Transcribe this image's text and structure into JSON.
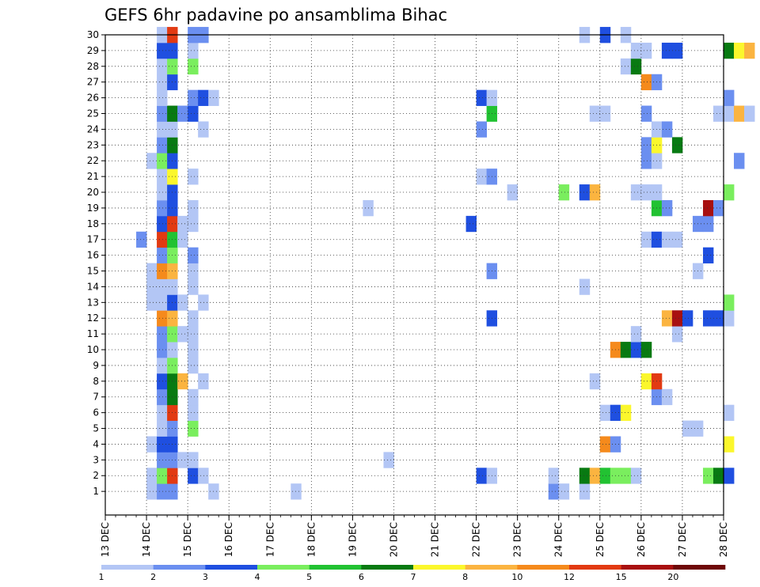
{
  "chart_data": {
    "type": "heatmap",
    "title": "GEFS 6hr padavine po ansamblima Bihac",
    "xlabel": "",
    "ylabel": "",
    "x_categories": [
      "13 DEC",
      "14 DEC",
      "15 DEC",
      "16 DEC",
      "17 DEC",
      "18 DEC",
      "19 DEC",
      "20 DEC",
      "21 DEC",
      "22 DEC",
      "23 DEC",
      "24 DEC",
      "25 DEC",
      "26 DEC",
      "27 DEC",
      "28 DEC"
    ],
    "y_categories": [
      1,
      2,
      3,
      4,
      5,
      6,
      7,
      8,
      9,
      10,
      11,
      12,
      13,
      14,
      15,
      16,
      17,
      18,
      19,
      20,
      21,
      22,
      23,
      24,
      25,
      26,
      27,
      28,
      29,
      30
    ],
    "time_step_hours": 6,
    "grid": true,
    "colorbar": {
      "labels": [
        "1",
        "2",
        "3",
        "4",
        "5",
        "6",
        "7",
        "8",
        "10",
        "12",
        "15",
        "20"
      ],
      "colors": [
        "#b3c6f5",
        "#6b8ff0",
        "#1f4fe0",
        "#7aee5e",
        "#22c232",
        "#087a12",
        "#fbf72c",
        "#fbb440",
        "#f58a1c",
        "#e23a12",
        "#a81010",
        "#6e0808"
      ]
    },
    "cells": [
      [
        4,
        1,
        1
      ],
      [
        5,
        1,
        2
      ],
      [
        6,
        1,
        2
      ],
      [
        10,
        1,
        1
      ],
      [
        18,
        1,
        1
      ],
      [
        43,
        1,
        2
      ],
      [
        44,
        1,
        1
      ],
      [
        46,
        1,
        1
      ],
      [
        4,
        2,
        1
      ],
      [
        5,
        2,
        4
      ],
      [
        6,
        2,
        10
      ],
      [
        8,
        2,
        3
      ],
      [
        9,
        2,
        1
      ],
      [
        36,
        2,
        3
      ],
      [
        37,
        2,
        1
      ],
      [
        43,
        2,
        1
      ],
      [
        46,
        2,
        6
      ],
      [
        47,
        2,
        8
      ],
      [
        48,
        2,
        5
      ],
      [
        49,
        2,
        4
      ],
      [
        50,
        2,
        4
      ],
      [
        51,
        2,
        1
      ],
      [
        58,
        2,
        4
      ],
      [
        59,
        2,
        6
      ],
      [
        60,
        2,
        3
      ],
      [
        5,
        3,
        2
      ],
      [
        6,
        3,
        2
      ],
      [
        7,
        3,
        1
      ],
      [
        8,
        3,
        1
      ],
      [
        27,
        3,
        1
      ],
      [
        4,
        4,
        1
      ],
      [
        5,
        4,
        3
      ],
      [
        6,
        4,
        3
      ],
      [
        48,
        4,
        9
      ],
      [
        49,
        4,
        2
      ],
      [
        60,
        4,
        7
      ],
      [
        5,
        5,
        1
      ],
      [
        6,
        5,
        2
      ],
      [
        8,
        5,
        4
      ],
      [
        56,
        5,
        1
      ],
      [
        57,
        5,
        1
      ],
      [
        5,
        6,
        1
      ],
      [
        6,
        6,
        10
      ],
      [
        8,
        6,
        1
      ],
      [
        48,
        6,
        1
      ],
      [
        49,
        6,
        3
      ],
      [
        50,
        6,
        7
      ],
      [
        60,
        6,
        1
      ],
      [
        5,
        7,
        2
      ],
      [
        6,
        7,
        6
      ],
      [
        8,
        7,
        1
      ],
      [
        53,
        7,
        2
      ],
      [
        54,
        7,
        1
      ],
      [
        5,
        8,
        3
      ],
      [
        6,
        8,
        6
      ],
      [
        7,
        8,
        8
      ],
      [
        9,
        8,
        1
      ],
      [
        47,
        8,
        1
      ],
      [
        52,
        8,
        7
      ],
      [
        53,
        8,
        10
      ],
      [
        5,
        9,
        1
      ],
      [
        6,
        9,
        4
      ],
      [
        8,
        9,
        1
      ],
      [
        5,
        10,
        2
      ],
      [
        6,
        10,
        1
      ],
      [
        8,
        10,
        1
      ],
      [
        49,
        10,
        9
      ],
      [
        50,
        10,
        6
      ],
      [
        51,
        10,
        3
      ],
      [
        52,
        10,
        6
      ],
      [
        5,
        11,
        2
      ],
      [
        6,
        11,
        4
      ],
      [
        7,
        11,
        1
      ],
      [
        8,
        11,
        1
      ],
      [
        51,
        11,
        1
      ],
      [
        55,
        11,
        1
      ],
      [
        5,
        12,
        9
      ],
      [
        6,
        12,
        8
      ],
      [
        8,
        12,
        1
      ],
      [
        37,
        12,
        3
      ],
      [
        54,
        12,
        8
      ],
      [
        55,
        12,
        11
      ],
      [
        56,
        12,
        3
      ],
      [
        58,
        12,
        3
      ],
      [
        59,
        12,
        3
      ],
      [
        60,
        12,
        1
      ],
      [
        4,
        13,
        1
      ],
      [
        5,
        13,
        1
      ],
      [
        6,
        13,
        3
      ],
      [
        7,
        13,
        1
      ],
      [
        9,
        13,
        1
      ],
      [
        60,
        13,
        4
      ],
      [
        4,
        14,
        1
      ],
      [
        5,
        14,
        1
      ],
      [
        6,
        14,
        1
      ],
      [
        8,
        14,
        1
      ],
      [
        46,
        14,
        1
      ],
      [
        4,
        15,
        1
      ],
      [
        5,
        15,
        9
      ],
      [
        6,
        15,
        8
      ],
      [
        8,
        15,
        1
      ],
      [
        37,
        15,
        2
      ],
      [
        57,
        15,
        1
      ],
      [
        5,
        16,
        2
      ],
      [
        6,
        16,
        4
      ],
      [
        8,
        16,
        2
      ],
      [
        58,
        16,
        3
      ],
      [
        3,
        17,
        2
      ],
      [
        5,
        17,
        10
      ],
      [
        6,
        17,
        5
      ],
      [
        7,
        17,
        1
      ],
      [
        52,
        17,
        1
      ],
      [
        53,
        17,
        3
      ],
      [
        54,
        17,
        1
      ],
      [
        55,
        17,
        1
      ],
      [
        5,
        18,
        3
      ],
      [
        6,
        18,
        10
      ],
      [
        7,
        18,
        1
      ],
      [
        8,
        18,
        1
      ],
      [
        35,
        18,
        3
      ],
      [
        57,
        18,
        2
      ],
      [
        58,
        18,
        2
      ],
      [
        5,
        19,
        2
      ],
      [
        6,
        19,
        3
      ],
      [
        8,
        19,
        1
      ],
      [
        25,
        19,
        1
      ],
      [
        53,
        19,
        5
      ],
      [
        54,
        19,
        2
      ],
      [
        58,
        19,
        11
      ],
      [
        59,
        19,
        2
      ],
      [
        5,
        20,
        1
      ],
      [
        6,
        20,
        3
      ],
      [
        39,
        20,
        1
      ],
      [
        44,
        20,
        4
      ],
      [
        46,
        20,
        3
      ],
      [
        47,
        20,
        8
      ],
      [
        51,
        20,
        1
      ],
      [
        52,
        20,
        1
      ],
      [
        53,
        20,
        1
      ],
      [
        60,
        20,
        4
      ],
      [
        5,
        21,
        1
      ],
      [
        6,
        21,
        7
      ],
      [
        8,
        21,
        1
      ],
      [
        36,
        21,
        1
      ],
      [
        37,
        21,
        2
      ],
      [
        4,
        22,
        1
      ],
      [
        5,
        22,
        4
      ],
      [
        6,
        22,
        3
      ],
      [
        52,
        22,
        2
      ],
      [
        53,
        22,
        1
      ],
      [
        61,
        22,
        2
      ],
      [
        5,
        23,
        2
      ],
      [
        6,
        23,
        6
      ],
      [
        52,
        23,
        2
      ],
      [
        53,
        23,
        7
      ],
      [
        55,
        23,
        6
      ],
      [
        5,
        24,
        1
      ],
      [
        6,
        24,
        1
      ],
      [
        9,
        24,
        1
      ],
      [
        36,
        24,
        2
      ],
      [
        53,
        24,
        1
      ],
      [
        54,
        24,
        2
      ],
      [
        5,
        25,
        2
      ],
      [
        6,
        25,
        6
      ],
      [
        7,
        25,
        2
      ],
      [
        8,
        25,
        3
      ],
      [
        37,
        25,
        5
      ],
      [
        47,
        25,
        1
      ],
      [
        48,
        25,
        1
      ],
      [
        52,
        25,
        2
      ],
      [
        59,
        25,
        1
      ],
      [
        60,
        25,
        1
      ],
      [
        61,
        25,
        8
      ],
      [
        62,
        25,
        1
      ],
      [
        5,
        26,
        1
      ],
      [
        8,
        26,
        2
      ],
      [
        9,
        26,
        3
      ],
      [
        10,
        26,
        1
      ],
      [
        36,
        26,
        3
      ],
      [
        37,
        26,
        1
      ],
      [
        60,
        26,
        2
      ],
      [
        5,
        27,
        1
      ],
      [
        6,
        27,
        3
      ],
      [
        52,
        27,
        9
      ],
      [
        53,
        27,
        2
      ],
      [
        5,
        28,
        1
      ],
      [
        6,
        28,
        4
      ],
      [
        8,
        28,
        4
      ],
      [
        50,
        28,
        1
      ],
      [
        51,
        28,
        6
      ],
      [
        5,
        29,
        3
      ],
      [
        6,
        29,
        3
      ],
      [
        8,
        29,
        1
      ],
      [
        51,
        29,
        1
      ],
      [
        52,
        29,
        1
      ],
      [
        54,
        29,
        3
      ],
      [
        55,
        29,
        3
      ],
      [
        60,
        29,
        6
      ],
      [
        61,
        29,
        7
      ],
      [
        62,
        29,
        8
      ],
      [
        5,
        30,
        1
      ],
      [
        6,
        30,
        10
      ],
      [
        8,
        30,
        2
      ],
      [
        9,
        30,
        2
      ],
      [
        46,
        30,
        1
      ],
      [
        48,
        30,
        3
      ],
      [
        50,
        30,
        1
      ]
    ]
  }
}
